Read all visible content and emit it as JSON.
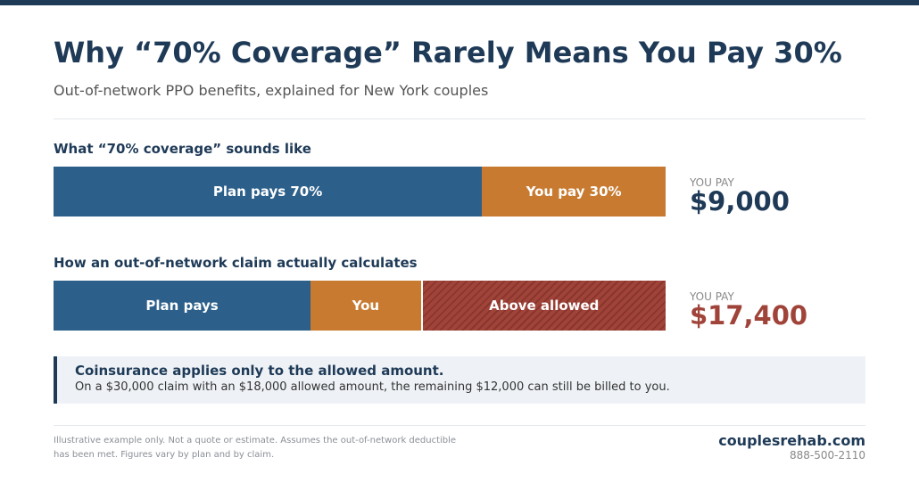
{
  "header": {
    "title": "Why “70% Coverage” Rarely Means You Pay 30%",
    "subtitle": "Out-of-network PPO benefits, explained for New York couples"
  },
  "bars": [
    {
      "heading": "What “70% coverage” sounds like",
      "segments": [
        {
          "label": "Plan pays 70%",
          "value": 21000,
          "color": "#2c5f8a"
        },
        {
          "label": "You pay 30%",
          "value": 9000,
          "color": "#c87a30"
        }
      ],
      "total_label": "YOU PAY",
      "total": "$9,000",
      "total_color": "#1e3a57"
    },
    {
      "heading": "How an out-of-network claim actually calculates",
      "segments": [
        {
          "label": "Plan pays",
          "value": 12600,
          "color": "#2c5f8a"
        },
        {
          "label": "You",
          "value": 5400,
          "color": "#c87a30"
        },
        {
          "label": "Above allowed",
          "value": 12000,
          "color": "#a0443a",
          "hatched": true
        }
      ],
      "total_label": "YOU PAY",
      "total": "$17,400",
      "total_color": "#a0443a"
    }
  ],
  "note": {
    "title": "Coinsurance applies only to the allowed amount.",
    "text": "On a $30,000 claim with an $18,000 allowed amount, the remaining $12,000 can still be billed to you."
  },
  "footer": {
    "disclaimer": "Illustrative example only. Not a quote or estimate. Assumes the out-of-network deductible has been met. Figures vary by plan and by claim.",
    "brand": "couplesrehab.com",
    "phone": "888-500-2110"
  }
}
